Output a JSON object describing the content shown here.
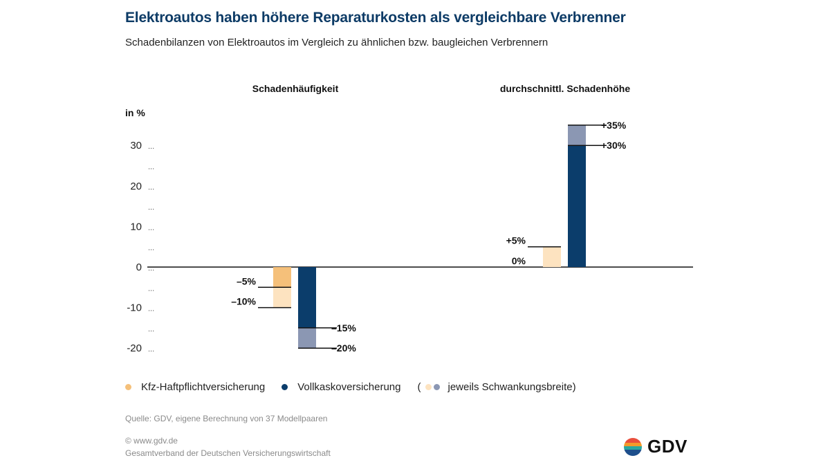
{
  "header": {
    "title": "Elektroautos haben höhere Reparaturkosten als vergleichbare Verbrenner",
    "subtitle": "Schadenbilanzen von Elektroautos im Vergleich zu ähnlichen bzw. baugleichen Verbrennern"
  },
  "chart_data": {
    "type": "bar",
    "unit_label": "in %",
    "ylim": [
      -20,
      35
    ],
    "y_ticks": [
      30,
      20,
      10,
      0,
      -10,
      -20
    ],
    "y_tick_labels": [
      "30",
      "20",
      "10",
      "0",
      "-10",
      "-20"
    ],
    "minor_tick_symbol": "...",
    "groups": [
      {
        "title": "Schadenhäufigkeit",
        "series": [
          {
            "name": "Kfz-Haftpflichtversicherung",
            "range": [
              -10,
              -5
            ],
            "range_labels": [
              "–5%",
              "–10%"
            ]
          },
          {
            "name": "Vollkaskoversicherung",
            "range": [
              -20,
              -15
            ],
            "range_labels": [
              "–15%",
              "–20%"
            ]
          }
        ]
      },
      {
        "title": "durchschnittl. Schadenhöhe",
        "series": [
          {
            "name": "Kfz-Haftpflichtversicherung",
            "range": [
              0,
              5
            ],
            "range_labels": [
              "+5%",
              "0%"
            ]
          },
          {
            "name": "Vollkaskoversicherung",
            "range": [
              30,
              35
            ],
            "range_labels": [
              "+35%",
              "+30%"
            ]
          }
        ]
      }
    ]
  },
  "legend": {
    "kfz": "Kfz-Haftpflichtversicherung",
    "vollkasko": "Vollkaskoversicherung",
    "range_open": "(",
    "range_text": "jeweils Schwankungsbreite)"
  },
  "colors": {
    "kfz": "#f5c07a",
    "kfz_range": "#fde3c0",
    "vollkasko": "#0b3d6b",
    "vollkasko_range": "#8b97b3",
    "title": "#0d3b66"
  },
  "footer": {
    "source": "Quelle: GDV, eigene Berechnung von 37 Modellpaaren",
    "website": "© www.gdv.de",
    "org": "Gesamtverband der Deutschen Versicherungswirtschaft",
    "logo_text": "GDV"
  }
}
